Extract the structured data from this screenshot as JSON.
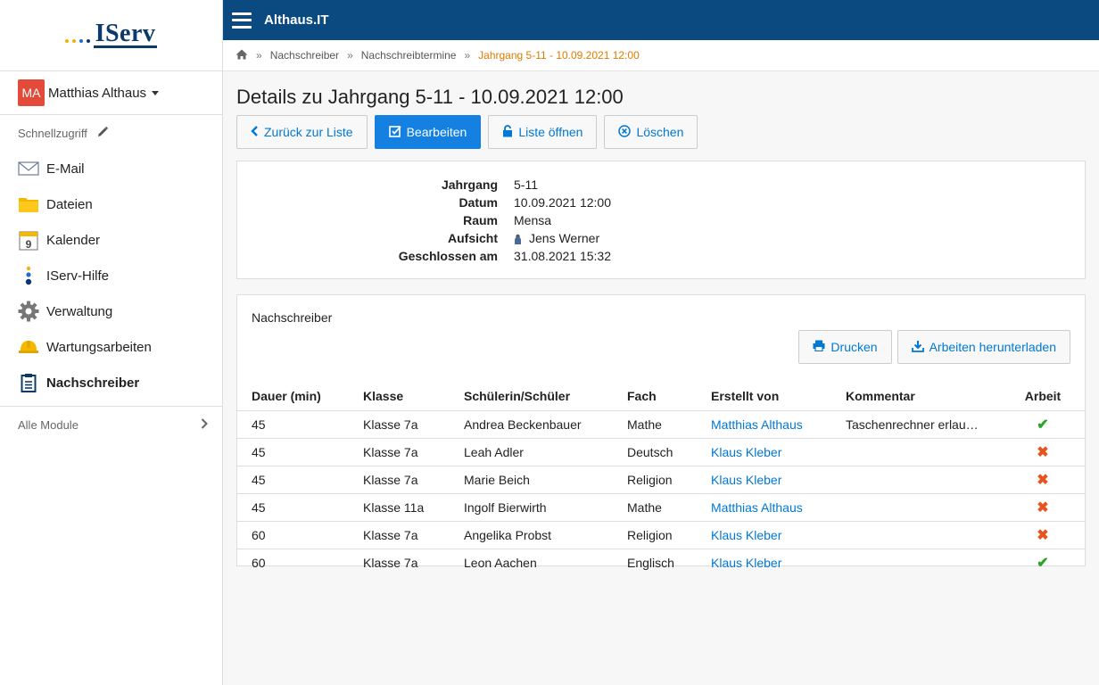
{
  "app": {
    "name": "Althaus.IT",
    "logo_text": "IServ"
  },
  "user": {
    "initials": "MA",
    "name": "Matthias Althaus"
  },
  "sidebar": {
    "quick_label": "Schnellzugriff",
    "items": [
      {
        "label": "E-Mail",
        "icon": "mail-icon"
      },
      {
        "label": "Dateien",
        "icon": "folder-icon"
      },
      {
        "label": "Kalender",
        "icon": "calendar-icon"
      },
      {
        "label": "IServ-Hilfe",
        "icon": "help-icon"
      },
      {
        "label": "Verwaltung",
        "icon": "gear-icon"
      },
      {
        "label": "Wartungsarbeiten",
        "icon": "hardhat-icon"
      },
      {
        "label": "Nachschreiber",
        "icon": "clipboard-icon"
      }
    ],
    "all_modules": "Alle Module"
  },
  "breadcrumb": {
    "items": [
      "Nachschreiber",
      "Nachschreibtermine"
    ],
    "current": "Jahrgang 5-11 - 10.09.2021 12:00"
  },
  "page": {
    "title": "Details zu Jahrgang 5-11 - 10.09.2021 12:00",
    "buttons": {
      "back": "Zurück zur Liste",
      "edit": "Bearbeiten",
      "open": "Liste öffnen",
      "delete": "Löschen"
    }
  },
  "details": {
    "jahrgang_label": "Jahrgang",
    "jahrgang": "5-11",
    "datum_label": "Datum",
    "datum": "10.09.2021 12:00",
    "raum_label": "Raum",
    "raum": "Mensa",
    "aufsicht_label": "Aufsicht",
    "aufsicht": "Jens Werner",
    "geschlossen_label": "Geschlossen am",
    "geschlossen": "31.08.2021 15:32"
  },
  "makeup": {
    "title": "Nachschreiber",
    "print": "Drucken",
    "download": "Arbeiten herunterladen",
    "columns": [
      "Dauer (min)",
      "Klasse",
      "Schülerin/Schüler",
      "Fach",
      "Erstellt von",
      "Kommentar",
      "Arbeit"
    ],
    "rows": [
      {
        "dauer": "45",
        "klasse": "Klasse 7a",
        "schueler": "Andrea Beckenbauer",
        "fach": "Mathe",
        "von": "Matthias Althaus",
        "kommentar": "Taschenrechner erlau…",
        "arbeit": "✔"
      },
      {
        "dauer": "45",
        "klasse": "Klasse 7a",
        "schueler": "Leah Adler",
        "fach": "Deutsch",
        "von": "Klaus Kleber",
        "kommentar": "",
        "arbeit": "✖"
      },
      {
        "dauer": "45",
        "klasse": "Klasse 7a",
        "schueler": "Marie Beich",
        "fach": "Religion",
        "von": "Klaus Kleber",
        "kommentar": "",
        "arbeit": "✖"
      },
      {
        "dauer": "45",
        "klasse": "Klasse 11a",
        "schueler": "Ingolf Bierwirth",
        "fach": "Mathe",
        "von": "Matthias Althaus",
        "kommentar": "",
        "arbeit": "✖"
      },
      {
        "dauer": "60",
        "klasse": "Klasse 7a",
        "schueler": "Angelika Probst",
        "fach": "Religion",
        "von": "Klaus Kleber",
        "kommentar": "",
        "arbeit": "✖"
      },
      {
        "dauer": "60",
        "klasse": "Klasse 7a",
        "schueler": "Leon Aachen",
        "fach": "Englisch",
        "von": "Klaus Kleber",
        "kommentar": "",
        "arbeit": "✔"
      }
    ]
  },
  "colors": {
    "topbar": "#0a4a80",
    "accent": "#1380e2",
    "link": "#0078d4",
    "current_crumb": "#e07b00",
    "ok": "#28a428",
    "no": "#e8541d"
  }
}
